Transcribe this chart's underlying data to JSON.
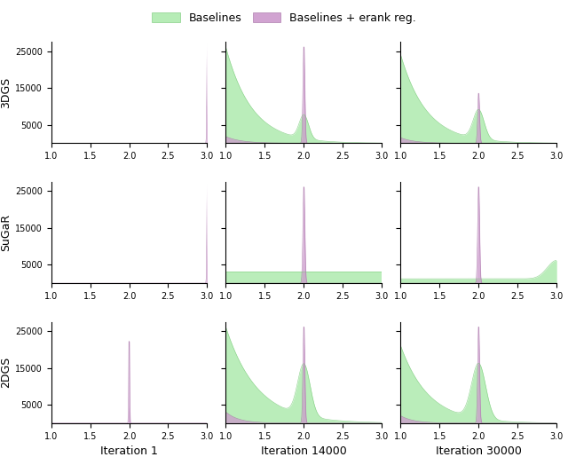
{
  "row_labels": [
    "3DGS",
    "SuGaR",
    "2DGS"
  ],
  "col_labels": [
    "Iteration 1",
    "Iteration 14000",
    "Iteration 30000"
  ],
  "xlim": [
    1.0,
    3.0
  ],
  "ylim": [
    0,
    27500
  ],
  "yticks": [
    5000,
    15000,
    25000
  ],
  "xticks": [
    1.0,
    1.5,
    2.0,
    2.5,
    3.0
  ],
  "color_green": "#aeeaae",
  "color_purple": "#cc99cc",
  "legend_green": "Baselines",
  "legend_purple": "Baselines + erank reg.",
  "figsize": [
    6.4,
    5.24
  ],
  "dpi": 100,
  "n_bins": 80
}
